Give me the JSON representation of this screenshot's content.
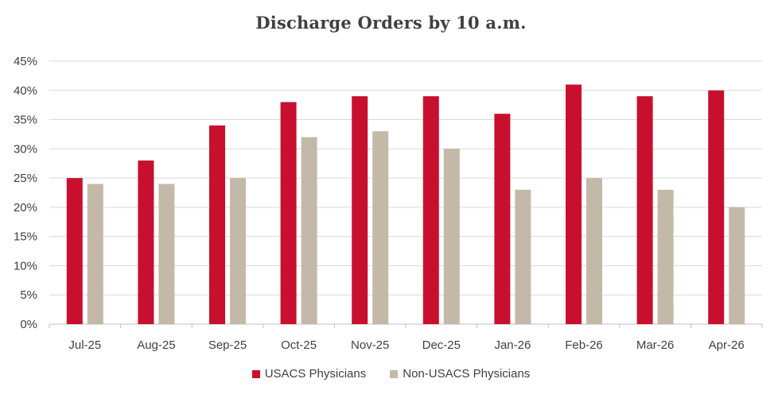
{
  "chart_data": {
    "type": "bar",
    "title": "Discharge Orders by 10 a.m.",
    "categories": [
      "Jul-25",
      "Aug-25",
      "Sep-25",
      "Oct-25",
      "Nov-25",
      "Dec-25",
      "Jan-26",
      "Feb-26",
      "Mar-26",
      "Apr-26"
    ],
    "series": [
      {
        "name": "USACS Physicians",
        "color": "#c8102e",
        "values": [
          25,
          28,
          34,
          38,
          39,
          39,
          36,
          41,
          39,
          40
        ]
      },
      {
        "name": "Non-USACS Physicians",
        "color": "#c4b8a8",
        "values": [
          24,
          24,
          25,
          32,
          33,
          30,
          23,
          25,
          23,
          20
        ]
      }
    ],
    "ylim": [
      0,
      45
    ],
    "yticks": [
      "0%",
      "5%",
      "10%",
      "15%",
      "20%",
      "25%",
      "30%",
      "35%",
      "40%",
      "45%"
    ],
    "grid": true,
    "legend_position": "bottom",
    "xlabel": "",
    "ylabel": ""
  }
}
